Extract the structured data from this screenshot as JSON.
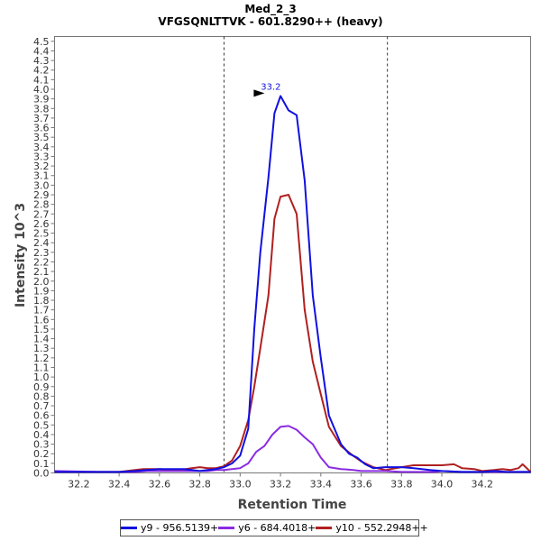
{
  "chart_data": {
    "type": "line",
    "title": "Med_2_3",
    "subtitle": "VFGSQNLTTVK - 601.8290++ (heavy)",
    "xlabel": "Retention Time",
    "ylabel": "Intensity 10^3",
    "xlim": [
      32.08,
      34.44
    ],
    "ylim": [
      0.0,
      4.55
    ],
    "x_ticks": [
      "32.2",
      "32.4",
      "32.6",
      "32.8",
      "33.0",
      "33.2",
      "33.4",
      "33.6",
      "33.8",
      "34.0",
      "34.2"
    ],
    "y_ticks": [
      "0.0",
      "0.1",
      "0.2",
      "0.3",
      "0.4",
      "0.5",
      "0.6",
      "0.7",
      "0.8",
      "0.9",
      "1.0",
      "1.1",
      "1.2",
      "1.3",
      "1.4",
      "1.5",
      "1.6",
      "1.7",
      "1.8",
      "1.9",
      "2.0",
      "2.1",
      "2.2",
      "2.3",
      "2.4",
      "2.5",
      "2.6",
      "2.7",
      "2.8",
      "2.9",
      "3.0",
      "3.1",
      "3.2",
      "3.3",
      "3.4",
      "3.5",
      "3.6",
      "3.7",
      "3.8",
      "3.9",
      "4.0",
      "4.1",
      "4.2",
      "4.3",
      "4.4",
      "4.5"
    ],
    "integration_bounds": [
      32.92,
      33.73
    ],
    "peak_label": "33.2",
    "peak_marker": {
      "x": 33.13,
      "y": 3.95
    },
    "series": [
      {
        "name": "y9 - 956.5139+",
        "color": "#1010e0",
        "x": [
          32.08,
          32.3,
          32.34,
          32.4,
          32.48,
          32.54,
          32.6,
          32.66,
          32.72,
          32.76,
          32.8,
          32.84,
          32.88,
          32.92,
          32.96,
          33.0,
          33.04,
          33.07,
          33.1,
          33.14,
          33.17,
          33.2,
          33.24,
          33.28,
          33.32,
          33.36,
          33.4,
          33.44,
          33.5,
          33.54,
          33.58,
          33.62,
          33.66,
          33.72,
          33.8,
          33.86,
          33.9,
          33.94,
          34.0,
          34.1,
          34.16,
          34.2,
          34.26,
          34.32,
          34.36,
          34.4,
          34.44
        ],
        "values": [
          0.01,
          0.01,
          0.01,
          0.01,
          0.02,
          0.03,
          0.04,
          0.04,
          0.04,
          0.03,
          0.02,
          0.03,
          0.04,
          0.06,
          0.1,
          0.18,
          0.46,
          1.5,
          2.3,
          3.08,
          3.75,
          3.93,
          3.78,
          3.73,
          3.05,
          1.85,
          1.2,
          0.6,
          0.3,
          0.2,
          0.16,
          0.09,
          0.05,
          0.06,
          0.06,
          0.05,
          0.04,
          0.03,
          0.02,
          0.01,
          0.01,
          0.01,
          0.02,
          0.01,
          0.01,
          0.01,
          0.01
        ]
      },
      {
        "name": "y6 - 684.4018+",
        "color": "#8a2be2",
        "x": [
          32.08,
          32.3,
          32.4,
          32.48,
          32.54,
          32.6,
          32.7,
          32.76,
          32.8,
          32.84,
          32.88,
          32.92,
          32.96,
          33.0,
          33.04,
          33.08,
          33.12,
          33.16,
          33.2,
          33.24,
          33.28,
          33.32,
          33.36,
          33.4,
          33.44,
          33.5,
          33.56,
          33.6,
          33.66,
          33.72,
          33.8,
          33.86,
          33.9,
          33.96,
          34.0,
          34.1,
          34.2,
          34.3,
          34.4,
          34.44
        ],
        "values": [
          0.02,
          0.01,
          0.01,
          0.01,
          0.02,
          0.02,
          0.02,
          0.02,
          0.02,
          0.02,
          0.03,
          0.03,
          0.04,
          0.05,
          0.1,
          0.22,
          0.28,
          0.4,
          0.48,
          0.49,
          0.45,
          0.37,
          0.3,
          0.16,
          0.06,
          0.04,
          0.03,
          0.02,
          0.02,
          0.02,
          0.01,
          0.01,
          0.01,
          0.01,
          0.02,
          0.01,
          0.01,
          0.01,
          0.01,
          0.01
        ]
      },
      {
        "name": "y10 - 552.2948++",
        "color": "#b02020",
        "x": [
          32.08,
          32.2,
          32.3,
          32.4,
          32.48,
          32.52,
          32.56,
          32.6,
          32.66,
          32.7,
          32.76,
          32.8,
          32.84,
          32.88,
          32.92,
          32.96,
          33.0,
          33.04,
          33.07,
          33.1,
          33.14,
          33.17,
          33.2,
          33.24,
          33.28,
          33.32,
          33.36,
          33.4,
          33.44,
          33.5,
          33.56,
          33.6,
          33.66,
          33.72,
          33.8,
          33.86,
          33.9,
          34.0,
          34.06,
          34.1,
          34.16,
          34.2,
          34.26,
          34.3,
          34.34,
          34.38,
          34.4,
          34.44
        ],
        "values": [
          0.01,
          0.01,
          0.01,
          0.01,
          0.03,
          0.04,
          0.04,
          0.04,
          0.03,
          0.03,
          0.05,
          0.06,
          0.05,
          0.05,
          0.07,
          0.13,
          0.28,
          0.55,
          0.9,
          1.3,
          1.85,
          2.65,
          2.88,
          2.9,
          2.7,
          1.7,
          1.16,
          0.82,
          0.48,
          0.28,
          0.18,
          0.12,
          0.06,
          0.03,
          0.06,
          0.08,
          0.08,
          0.08,
          0.09,
          0.05,
          0.04,
          0.02,
          0.03,
          0.04,
          0.03,
          0.05,
          0.09,
          0.01
        ]
      }
    ]
  }
}
